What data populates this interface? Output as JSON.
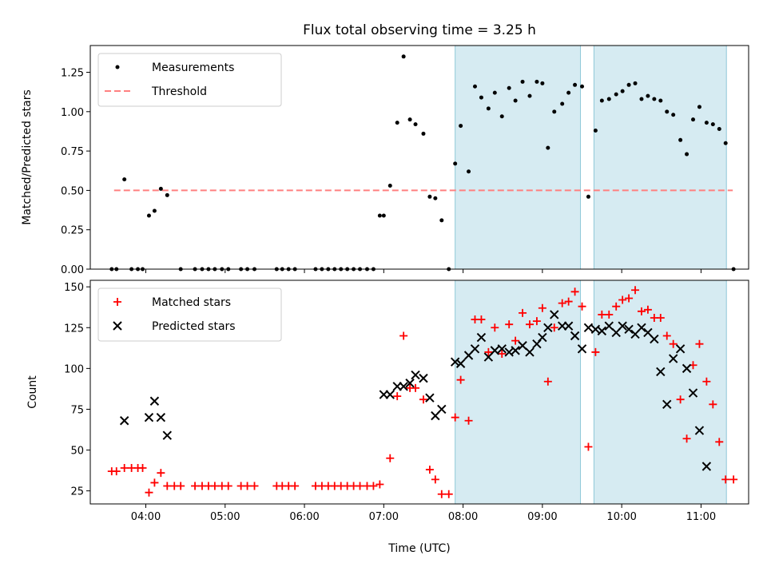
{
  "chart_data": [
    {
      "type": "scatter",
      "title": "Flux total observing time = 3.25 h",
      "xlabel": "",
      "ylabel": "Matched/Predicted stars",
      "xlim": [
        3.3,
        11.6
      ],
      "ylim": [
        0,
        1.42
      ],
      "yticks": [
        0,
        0.25,
        0.5,
        0.75,
        1.0,
        1.25
      ],
      "ytick_labels": [
        "0.00",
        "0.25",
        "0.50",
        "0.75",
        "1.00",
        "1.25"
      ],
      "legend": {
        "placement": "top-left",
        "entries": [
          "Measurements",
          "Threshold"
        ]
      },
      "shaded_intervals": [
        [
          7.9,
          9.48
        ],
        [
          9.65,
          11.32
        ]
      ],
      "threshold": {
        "name": "Threshold",
        "y": 0.5,
        "x": [
          3.6,
          11.4
        ],
        "color": "#ff8080"
      },
      "series": [
        {
          "name": "Measurements",
          "color": "#000000",
          "marker": "dot",
          "x": [
            3.57,
            3.63,
            3.73,
            3.82,
            3.9,
            3.96,
            4.04,
            4.11,
            4.19,
            4.27,
            4.44,
            4.62,
            4.71,
            4.79,
            4.87,
            4.96,
            5.04,
            5.2,
            5.28,
            5.37,
            5.65,
            5.72,
            5.8,
            5.88,
            6.14,
            6.22,
            6.3,
            6.38,
            6.46,
            6.54,
            6.62,
            6.7,
            6.79,
            6.87,
            6.95,
            7.0,
            7.08,
            7.17,
            7.25,
            7.33,
            7.4,
            7.5,
            7.58,
            7.65,
            7.73,
            7.82,
            7.9,
            7.97,
            8.07,
            8.15,
            8.23,
            8.32,
            8.4,
            8.49,
            8.58,
            8.66,
            8.75,
            8.84,
            8.93,
            9.0,
            9.07,
            9.15,
            9.25,
            9.33,
            9.41,
            9.5,
            9.58,
            9.67,
            9.75,
            9.84,
            9.93,
            10.01,
            10.09,
            10.17,
            10.25,
            10.33,
            10.41,
            10.49,
            10.57,
            10.65,
            10.74,
            10.82,
            10.9,
            10.98,
            11.07,
            11.15,
            11.23,
            11.31,
            11.41
          ],
          "y": [
            0,
            0,
            0.57,
            0,
            0,
            0,
            0.34,
            0.37,
            0.51,
            0.47,
            0,
            0,
            0,
            0,
            0,
            0,
            0,
            0,
            0,
            0,
            0,
            0,
            0,
            0,
            0,
            0,
            0,
            0,
            0,
            0,
            0,
            0,
            0,
            0,
            0.34,
            0.34,
            0.53,
            0.93,
            1.35,
            0.95,
            0.92,
            0.86,
            0.46,
            0.45,
            0.31,
            0,
            0.67,
            0.91,
            0.62,
            1.16,
            1.09,
            1.02,
            1.12,
            0.97,
            1.15,
            1.07,
            1.19,
            1.1,
            1.19,
            1.18,
            0.77,
            1.0,
            1.05,
            1.12,
            1.17,
            1.16,
            0.46,
            0.88,
            1.07,
            1.08,
            1.11,
            1.13,
            1.17,
            1.18,
            1.08,
            1.1,
            1.08,
            1.07,
            1.0,
            0.98,
            0.82,
            0.73,
            0.95,
            1.03,
            0.93,
            0.92,
            0.89,
            0.8,
            0
          ]
        }
      ]
    },
    {
      "type": "scatter",
      "title": "",
      "xlabel": "Time (UTC)",
      "ylabel": "Count",
      "xlim": [
        3.3,
        11.6
      ],
      "ylim": [
        17,
        154
      ],
      "yticks": [
        25,
        50,
        75,
        100,
        125,
        150
      ],
      "ytick_labels": [
        "25",
        "50",
        "75",
        "100",
        "125",
        "150"
      ],
      "xticks": [
        4,
        5,
        6,
        7,
        8,
        9,
        10,
        11
      ],
      "xtick_labels": [
        "04:00",
        "05:00",
        "06:00",
        "07:00",
        "08:00",
        "09:00",
        "10:00",
        "11:00"
      ],
      "legend": {
        "placement": "top-left",
        "entries": [
          "Matched stars",
          "Predicted stars"
        ]
      },
      "shaded_intervals": [
        [
          7.9,
          9.48
        ],
        [
          9.65,
          11.32
        ]
      ],
      "series": [
        {
          "name": "Matched stars",
          "color": "#ff0000",
          "marker": "plus",
          "x": [
            3.57,
            3.63,
            3.73,
            3.82,
            3.9,
            3.96,
            4.04,
            4.11,
            4.19,
            4.27,
            4.36,
            4.44,
            4.62,
            4.71,
            4.79,
            4.87,
            4.96,
            5.04,
            5.2,
            5.28,
            5.37,
            5.65,
            5.72,
            5.8,
            5.88,
            6.14,
            6.22,
            6.3,
            6.38,
            6.46,
            6.54,
            6.62,
            6.7,
            6.79,
            6.87,
            6.95,
            7.08,
            7.17,
            7.25,
            7.33,
            7.4,
            7.5,
            7.58,
            7.65,
            7.73,
            7.82,
            7.9,
            7.97,
            8.07,
            8.15,
            8.23,
            8.32,
            8.4,
            8.49,
            8.58,
            8.66,
            8.75,
            8.84,
            8.93,
            9.0,
            9.07,
            9.15,
            9.25,
            9.33,
            9.41,
            9.5,
            9.58,
            9.67,
            9.75,
            9.84,
            9.93,
            10.01,
            10.09,
            10.17,
            10.25,
            10.33,
            10.41,
            10.49,
            10.57,
            10.65,
            10.74,
            10.82,
            10.9,
            10.98,
            11.07,
            11.15,
            11.23,
            11.31,
            11.41
          ],
          "y": [
            37,
            37,
            39,
            39,
            39,
            39,
            24,
            30,
            36,
            28,
            28,
            28,
            28,
            28,
            28,
            28,
            28,
            28,
            28,
            28,
            28,
            28,
            28,
            28,
            28,
            28,
            28,
            28,
            28,
            28,
            28,
            28,
            28,
            28,
            28,
            29,
            45,
            83,
            120,
            88,
            88,
            81,
            38,
            32,
            23,
            23,
            70,
            93,
            68,
            130,
            130,
            110,
            125,
            109,
            127,
            117,
            134,
            127,
            129,
            137,
            92,
            125,
            140,
            141,
            147,
            138,
            52,
            110,
            133,
            133,
            138,
            142,
            143,
            148,
            135,
            136,
            131,
            131,
            120,
            115,
            81,
            57,
            102,
            115,
            92,
            78,
            55,
            32,
            32
          ]
        },
        {
          "name": "Predicted stars",
          "color": "#000000",
          "marker": "x",
          "x": [
            3.73,
            4.04,
            4.11,
            4.19,
            4.27,
            7.0,
            7.08,
            7.17,
            7.25,
            7.33,
            7.4,
            7.5,
            7.58,
            7.65,
            7.73,
            7.9,
            7.97,
            8.07,
            8.15,
            8.23,
            8.32,
            8.4,
            8.49,
            8.58,
            8.66,
            8.75,
            8.84,
            8.93,
            9.0,
            9.07,
            9.15,
            9.25,
            9.33,
            9.41,
            9.5,
            9.58,
            9.67,
            9.75,
            9.84,
            9.93,
            10.01,
            10.09,
            10.17,
            10.25,
            10.33,
            10.41,
            10.49,
            10.57,
            10.65,
            10.74,
            10.82,
            10.9,
            10.98,
            11.07,
            11.15,
            11.23,
            11.31
          ],
          "y": [
            68,
            70,
            80,
            70,
            59,
            84,
            84,
            89,
            89,
            91,
            96,
            94,
            82,
            71,
            75,
            104,
            103,
            108,
            112,
            119,
            107,
            111,
            112,
            110,
            111,
            114,
            110,
            115,
            119,
            125,
            133,
            126,
            126,
            120,
            112,
            125,
            124,
            123,
            126,
            122,
            126,
            124,
            121,
            125,
            122,
            118,
            98,
            78,
            106,
            112,
            100,
            85,
            62,
            40,
            null,
            null,
            null
          ]
        }
      ]
    }
  ]
}
